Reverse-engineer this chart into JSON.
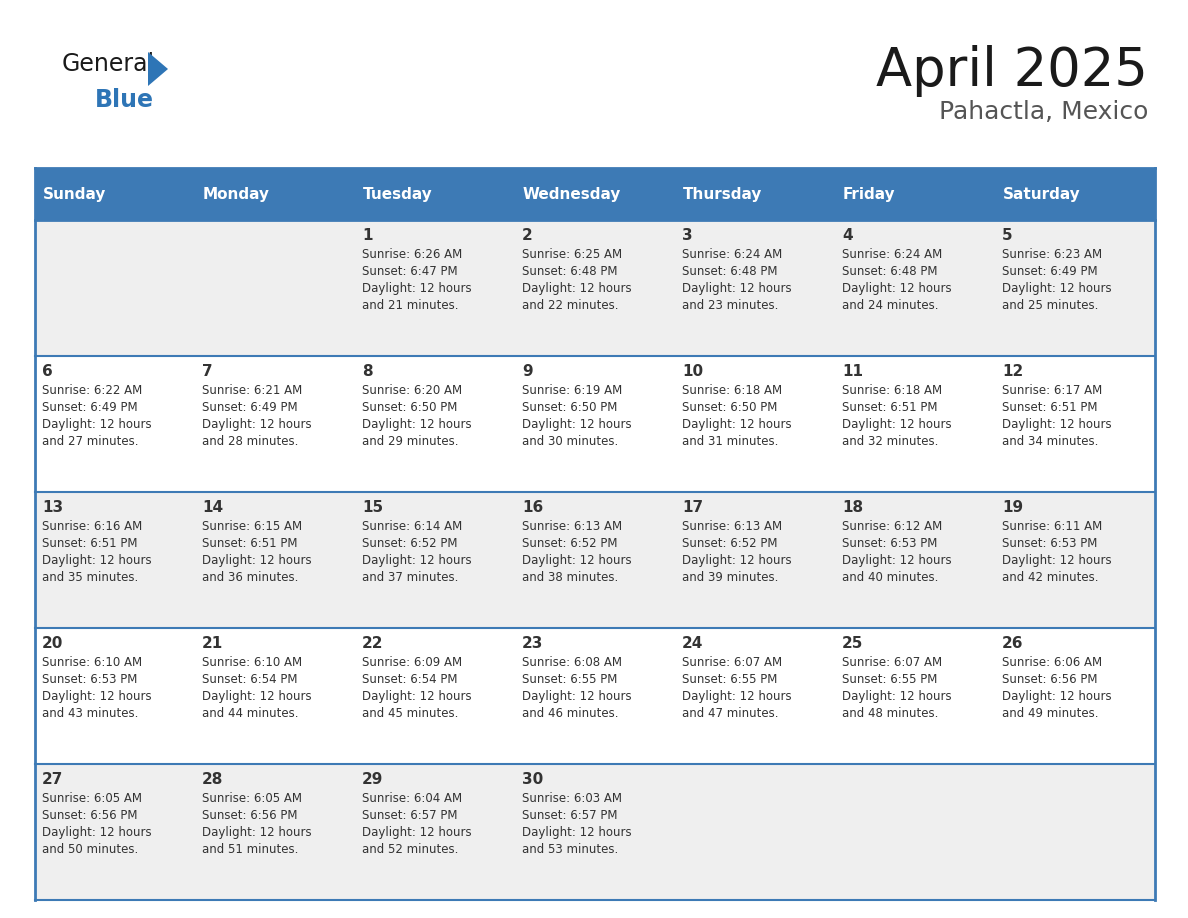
{
  "title": "April 2025",
  "subtitle": "Pahactla, Mexico",
  "days_of_week": [
    "Sunday",
    "Monday",
    "Tuesday",
    "Wednesday",
    "Thursday",
    "Friday",
    "Saturday"
  ],
  "header_bg": "#3d7ab5",
  "header_text": "#ffffff",
  "cell_bg_odd": "#efefef",
  "cell_bg_even": "#ffffff",
  "text_color": "#333333",
  "border_color": "#3d7ab5",
  "title_color": "#1a1a1a",
  "subtitle_color": "#555555",
  "logo_general_color": "#1a1a1a",
  "logo_blue_color": "#2e75b6",
  "calendar": [
    [
      {
        "day": null,
        "sunrise": null,
        "sunset": null,
        "daylight_h": null,
        "daylight_m": null
      },
      {
        "day": null,
        "sunrise": null,
        "sunset": null,
        "daylight_h": null,
        "daylight_m": null
      },
      {
        "day": 1,
        "sunrise": "6:26 AM",
        "sunset": "6:47 PM",
        "daylight_h": "12 hours",
        "daylight_m": "and 21 minutes."
      },
      {
        "day": 2,
        "sunrise": "6:25 AM",
        "sunset": "6:48 PM",
        "daylight_h": "12 hours",
        "daylight_m": "and 22 minutes."
      },
      {
        "day": 3,
        "sunrise": "6:24 AM",
        "sunset": "6:48 PM",
        "daylight_h": "12 hours",
        "daylight_m": "and 23 minutes."
      },
      {
        "day": 4,
        "sunrise": "6:24 AM",
        "sunset": "6:48 PM",
        "daylight_h": "12 hours",
        "daylight_m": "and 24 minutes."
      },
      {
        "day": 5,
        "sunrise": "6:23 AM",
        "sunset": "6:49 PM",
        "daylight_h": "12 hours",
        "daylight_m": "and 25 minutes."
      }
    ],
    [
      {
        "day": 6,
        "sunrise": "6:22 AM",
        "sunset": "6:49 PM",
        "daylight_h": "12 hours",
        "daylight_m": "and 27 minutes."
      },
      {
        "day": 7,
        "sunrise": "6:21 AM",
        "sunset": "6:49 PM",
        "daylight_h": "12 hours",
        "daylight_m": "and 28 minutes."
      },
      {
        "day": 8,
        "sunrise": "6:20 AM",
        "sunset": "6:50 PM",
        "daylight_h": "12 hours",
        "daylight_m": "and 29 minutes."
      },
      {
        "day": 9,
        "sunrise": "6:19 AM",
        "sunset": "6:50 PM",
        "daylight_h": "12 hours",
        "daylight_m": "and 30 minutes."
      },
      {
        "day": 10,
        "sunrise": "6:18 AM",
        "sunset": "6:50 PM",
        "daylight_h": "12 hours",
        "daylight_m": "and 31 minutes."
      },
      {
        "day": 11,
        "sunrise": "6:18 AM",
        "sunset": "6:51 PM",
        "daylight_h": "12 hours",
        "daylight_m": "and 32 minutes."
      },
      {
        "day": 12,
        "sunrise": "6:17 AM",
        "sunset": "6:51 PM",
        "daylight_h": "12 hours",
        "daylight_m": "and 34 minutes."
      }
    ],
    [
      {
        "day": 13,
        "sunrise": "6:16 AM",
        "sunset": "6:51 PM",
        "daylight_h": "12 hours",
        "daylight_m": "and 35 minutes."
      },
      {
        "day": 14,
        "sunrise": "6:15 AM",
        "sunset": "6:51 PM",
        "daylight_h": "12 hours",
        "daylight_m": "and 36 minutes."
      },
      {
        "day": 15,
        "sunrise": "6:14 AM",
        "sunset": "6:52 PM",
        "daylight_h": "12 hours",
        "daylight_m": "and 37 minutes."
      },
      {
        "day": 16,
        "sunrise": "6:13 AM",
        "sunset": "6:52 PM",
        "daylight_h": "12 hours",
        "daylight_m": "and 38 minutes."
      },
      {
        "day": 17,
        "sunrise": "6:13 AM",
        "sunset": "6:52 PM",
        "daylight_h": "12 hours",
        "daylight_m": "and 39 minutes."
      },
      {
        "day": 18,
        "sunrise": "6:12 AM",
        "sunset": "6:53 PM",
        "daylight_h": "12 hours",
        "daylight_m": "and 40 minutes."
      },
      {
        "day": 19,
        "sunrise": "6:11 AM",
        "sunset": "6:53 PM",
        "daylight_h": "12 hours",
        "daylight_m": "and 42 minutes."
      }
    ],
    [
      {
        "day": 20,
        "sunrise": "6:10 AM",
        "sunset": "6:53 PM",
        "daylight_h": "12 hours",
        "daylight_m": "and 43 minutes."
      },
      {
        "day": 21,
        "sunrise": "6:10 AM",
        "sunset": "6:54 PM",
        "daylight_h": "12 hours",
        "daylight_m": "and 44 minutes."
      },
      {
        "day": 22,
        "sunrise": "6:09 AM",
        "sunset": "6:54 PM",
        "daylight_h": "12 hours",
        "daylight_m": "and 45 minutes."
      },
      {
        "day": 23,
        "sunrise": "6:08 AM",
        "sunset": "6:55 PM",
        "daylight_h": "12 hours",
        "daylight_m": "and 46 minutes."
      },
      {
        "day": 24,
        "sunrise": "6:07 AM",
        "sunset": "6:55 PM",
        "daylight_h": "12 hours",
        "daylight_m": "and 47 minutes."
      },
      {
        "day": 25,
        "sunrise": "6:07 AM",
        "sunset": "6:55 PM",
        "daylight_h": "12 hours",
        "daylight_m": "and 48 minutes."
      },
      {
        "day": 26,
        "sunrise": "6:06 AM",
        "sunset": "6:56 PM",
        "daylight_h": "12 hours",
        "daylight_m": "and 49 minutes."
      }
    ],
    [
      {
        "day": 27,
        "sunrise": "6:05 AM",
        "sunset": "6:56 PM",
        "daylight_h": "12 hours",
        "daylight_m": "and 50 minutes."
      },
      {
        "day": 28,
        "sunrise": "6:05 AM",
        "sunset": "6:56 PM",
        "daylight_h": "12 hours",
        "daylight_m": "and 51 minutes."
      },
      {
        "day": 29,
        "sunrise": "6:04 AM",
        "sunset": "6:57 PM",
        "daylight_h": "12 hours",
        "daylight_m": "and 52 minutes."
      },
      {
        "day": 30,
        "sunrise": "6:03 AM",
        "sunset": "6:57 PM",
        "daylight_h": "12 hours",
        "daylight_m": "and 53 minutes."
      },
      {
        "day": null,
        "sunrise": null,
        "sunset": null,
        "daylight_h": null,
        "daylight_m": null
      },
      {
        "day": null,
        "sunrise": null,
        "sunset": null,
        "daylight_h": null,
        "daylight_m": null
      },
      {
        "day": null,
        "sunrise": null,
        "sunset": null,
        "daylight_h": null,
        "daylight_m": null
      }
    ]
  ]
}
